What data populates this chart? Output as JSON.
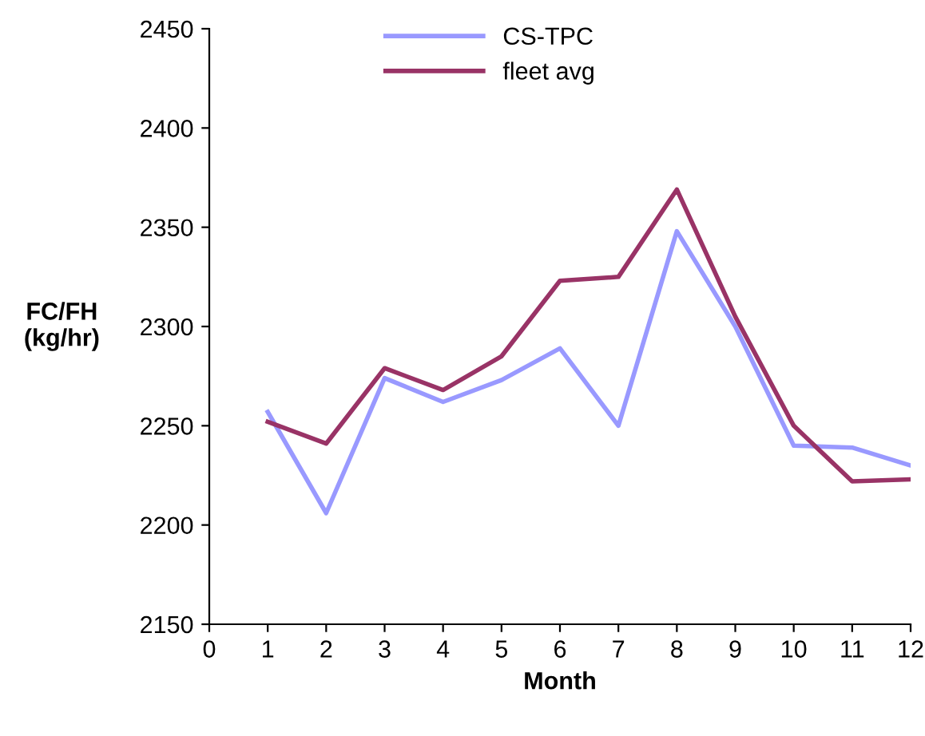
{
  "chart_data": {
    "type": "line",
    "xlabel": "Month",
    "ylabel": "FC/FH\n(kg/hr)",
    "x": [
      1,
      2,
      3,
      4,
      5,
      6,
      7,
      8,
      9,
      10,
      11,
      12
    ],
    "series": [
      {
        "name": "CS-TPC",
        "color": "#9999ff",
        "values": [
          2257,
          2206,
          2274,
          2262,
          2273,
          2289,
          2250,
          2348,
          2300,
          2240,
          2239,
          2230
        ]
      },
      {
        "name": "fleet avg",
        "color": "#993366",
        "values": [
          2252,
          2241,
          2279,
          2268,
          2285,
          2323,
          2325,
          2369,
          2305,
          2250,
          2222,
          2223
        ]
      }
    ],
    "xlim": [
      0,
      12
    ],
    "xticks": [
      0,
      1,
      2,
      3,
      4,
      5,
      6,
      7,
      8,
      9,
      10,
      11,
      12
    ],
    "ylim": [
      2150,
      2450
    ],
    "yticks": [
      2150,
      2200,
      2250,
      2300,
      2350,
      2400,
      2450
    ],
    "grid": false,
    "legend": "top",
    "marker": "none",
    "line_style": "solid"
  }
}
